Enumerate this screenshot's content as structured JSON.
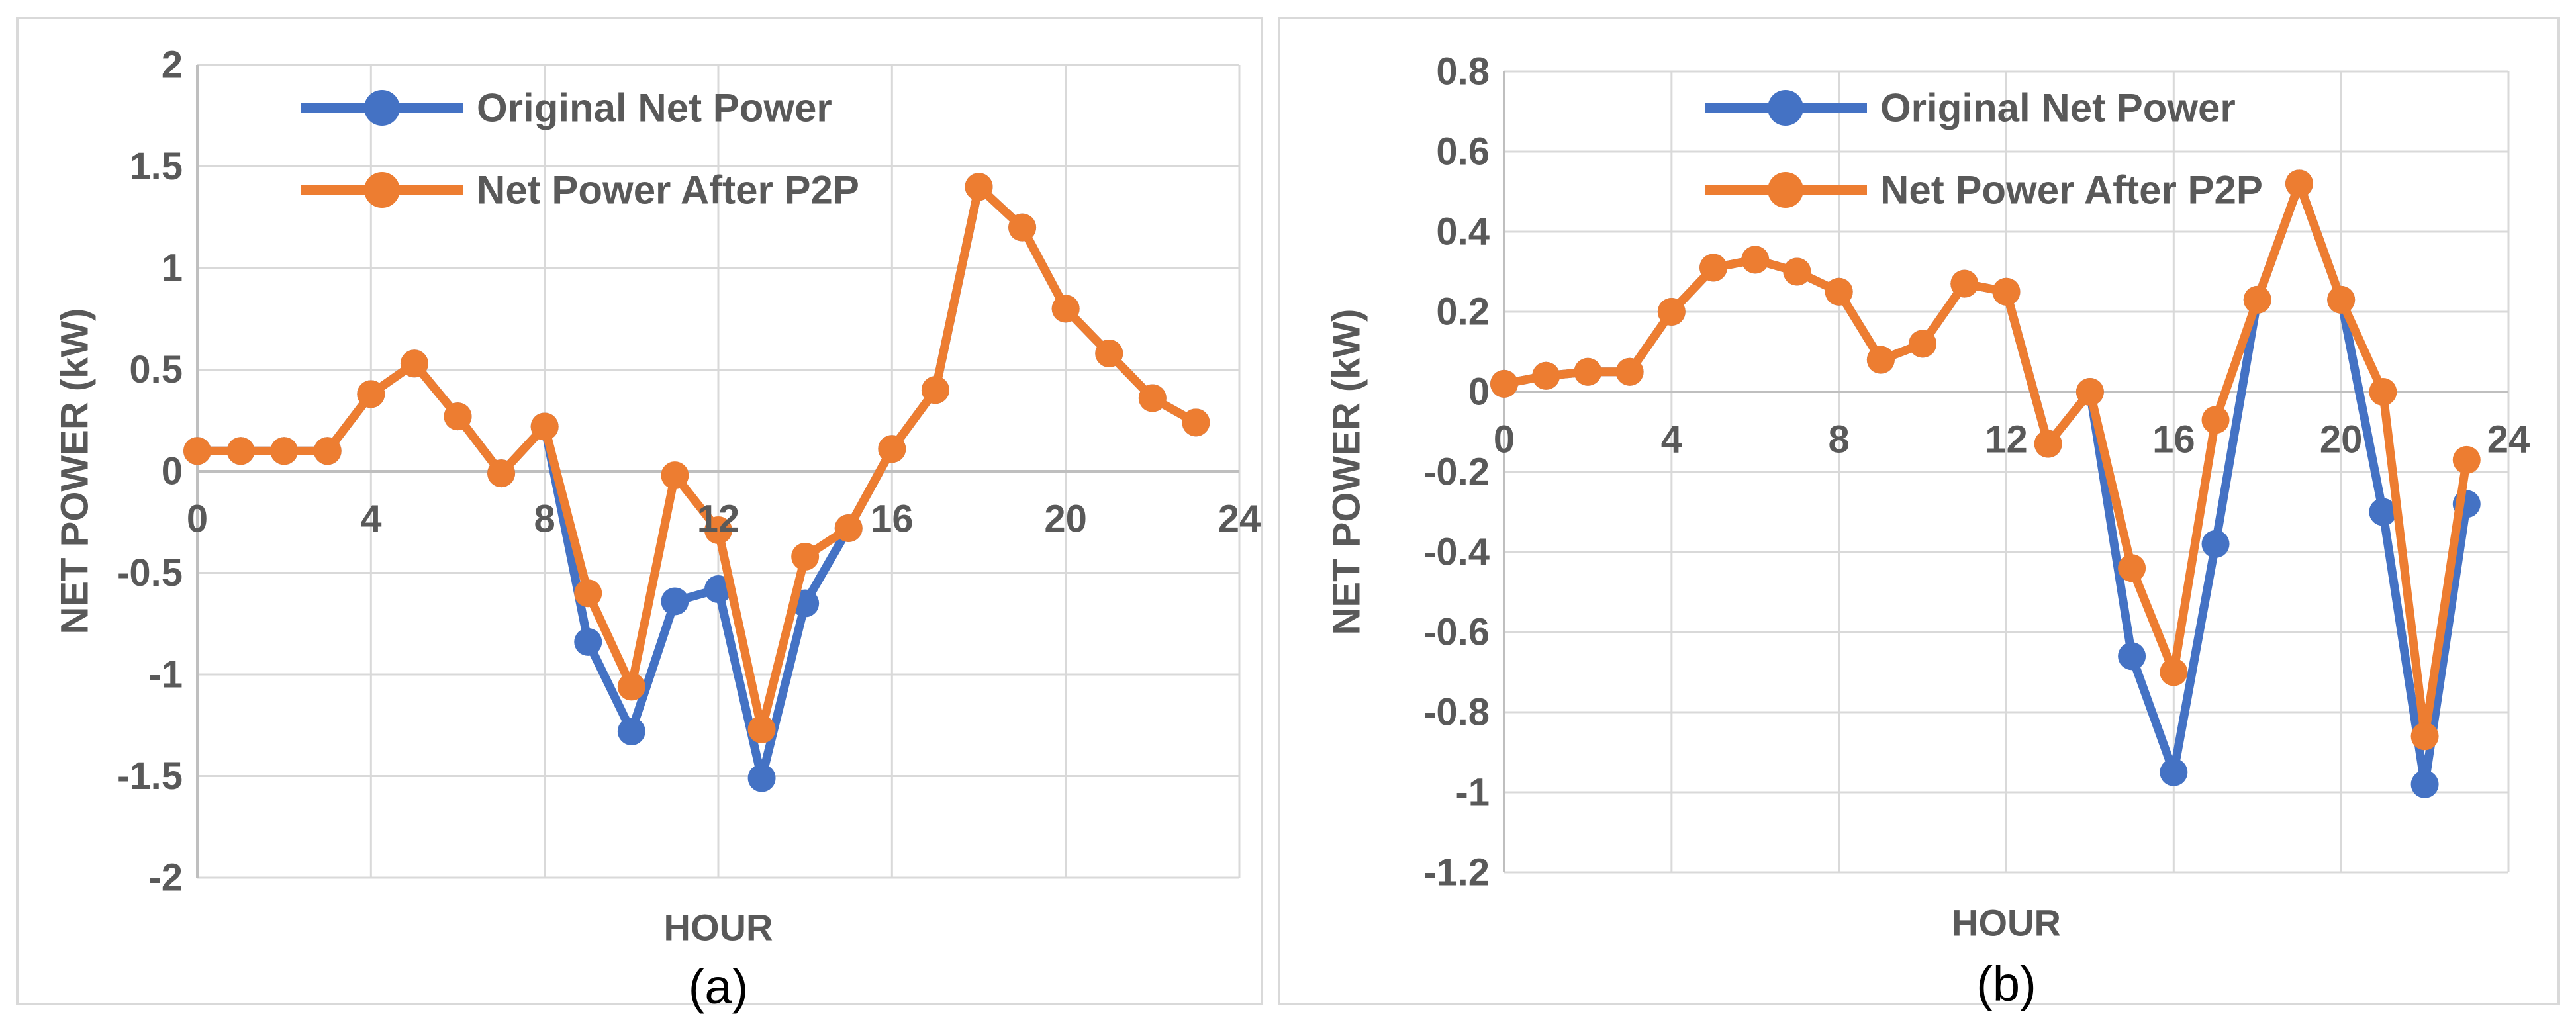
{
  "figure": {
    "background": "#FFFFFF",
    "panel_border_color": "#D9D9D9",
    "description": "Two side-by-side line charts comparing net power before and after P2P trading over 24 hours"
  },
  "palette": {
    "series_blue": "#4472C4",
    "series_orange": "#ED7D31",
    "text_grey": "#595959",
    "gridline_grey": "#D9D9D9",
    "axis_grey": "#BFBFBF",
    "caption_black": "#000000"
  },
  "legend": {
    "position": "top-left-inside",
    "items": [
      {
        "label": "Original Net Power",
        "color": "#4472C4"
      },
      {
        "label": "Net Power After P2P",
        "color": "#ED7D31"
      }
    ]
  },
  "chart_data": [
    {
      "type": "line",
      "caption": "(a)",
      "xlabel": "HOUR",
      "ylabel": "NET POWER (kW)",
      "xlim": [
        0,
        24
      ],
      "ylim": [
        -2,
        2
      ],
      "ytick_step": 0.5,
      "grid": true,
      "legend_position": "top-left",
      "xticks": [
        0,
        4,
        8,
        12,
        16,
        20,
        24
      ],
      "xticklabels": [
        "0",
        "4",
        "8",
        "12",
        "16",
        "20",
        "24"
      ],
      "yticklabels": [
        "2",
        "1.5",
        "1",
        "0.5",
        "0",
        "-0.5",
        "-1",
        "-1.5",
        "-2"
      ],
      "x": [
        0,
        1,
        2,
        3,
        4,
        5,
        6,
        7,
        8,
        9,
        10,
        11,
        12,
        13,
        14,
        15,
        16,
        17,
        18,
        19,
        20,
        21,
        22,
        23
      ],
      "series": [
        {
          "name": "Original Net Power",
          "color": "#4472C4",
          "values": [
            0.1,
            0.1,
            0.1,
            0.1,
            0.38,
            0.53,
            0.27,
            -0.01,
            0.22,
            -0.84,
            -1.28,
            -0.64,
            -0.58,
            -1.51,
            -0.65,
            -0.28,
            0.11,
            0.4,
            1.4,
            1.2,
            0.8,
            0.58,
            0.36,
            0.24
          ]
        },
        {
          "name": "Net Power After P2P",
          "color": "#ED7D31",
          "values": [
            0.1,
            0.1,
            0.1,
            0.1,
            0.38,
            0.53,
            0.27,
            -0.01,
            0.22,
            -0.6,
            -1.06,
            -0.02,
            -0.29,
            -1.27,
            -0.42,
            -0.28,
            0.11,
            0.4,
            1.4,
            1.2,
            0.8,
            0.58,
            0.36,
            0.24
          ]
        }
      ]
    },
    {
      "type": "line",
      "caption": "(b)",
      "xlabel": "HOUR",
      "ylabel": "NET POWER (kW)",
      "xlim": [
        0,
        24
      ],
      "ylim": [
        -1.2,
        0.8
      ],
      "ytick_step": 0.2,
      "grid": true,
      "legend_position": "top-left",
      "xticks": [
        0,
        4,
        8,
        12,
        16,
        20,
        24
      ],
      "xticklabels": [
        "0",
        "4",
        "8",
        "12",
        "16",
        "20",
        "24"
      ],
      "yticklabels": [
        "0.8",
        "0.6",
        "0.4",
        "0.2",
        "0",
        "-0.2",
        "-0.4",
        "-0.6",
        "-0.8",
        "-1",
        "-1.2"
      ],
      "x": [
        0,
        1,
        2,
        3,
        4,
        5,
        6,
        7,
        8,
        9,
        10,
        11,
        12,
        13,
        14,
        15,
        16,
        17,
        18,
        19,
        20,
        21,
        22,
        23
      ],
      "series": [
        {
          "name": "Original Net Power",
          "color": "#4472C4",
          "values": [
            0.02,
            0.04,
            0.05,
            0.05,
            0.2,
            0.31,
            0.33,
            0.3,
            0.25,
            0.08,
            0.12,
            0.27,
            0.25,
            -0.13,
            0,
            -0.66,
            -0.95,
            -0.38,
            0.23,
            0.52,
            0.23,
            -0.3,
            -0.98,
            -0.28
          ]
        },
        {
          "name": "Net Power After P2P",
          "color": "#ED7D31",
          "values": [
            0.02,
            0.04,
            0.05,
            0.05,
            0.2,
            0.31,
            0.33,
            0.3,
            0.25,
            0.08,
            0.12,
            0.27,
            0.25,
            -0.13,
            0,
            -0.44,
            -0.7,
            -0.07,
            0.23,
            0.52,
            0.23,
            0,
            -0.86,
            -0.17
          ]
        }
      ]
    }
  ]
}
